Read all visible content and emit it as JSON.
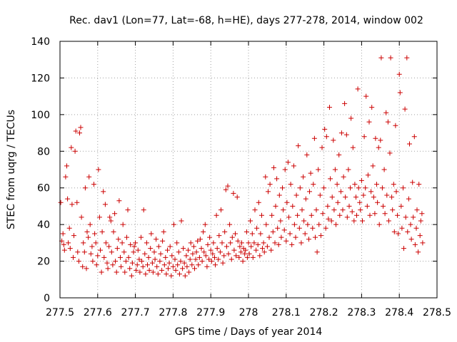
{
  "chart_data": {
    "type": "scatter",
    "title": "Rec. dav1 (Lon=77, Lat=-68, h=HE), days 277-278, 2014, window 002",
    "xlabel": "GPS time / Days of year 2014",
    "ylabel": "STEC from uqrg / TECUs",
    "xlim": [
      277.5,
      278.5
    ],
    "ylim": [
      0,
      140
    ],
    "xticks": [
      "277.5",
      "277.6",
      "277.7",
      "277.8",
      "277.9",
      "278",
      "278.1",
      "278.2",
      "278.3",
      "278.4",
      "278.5"
    ],
    "yticks": [
      "0",
      "20",
      "40",
      "60",
      "80",
      "100",
      "120",
      "140"
    ],
    "grid": true,
    "marker": "plus",
    "color": "#cc0000",
    "points": [
      [
        277.502,
        52
      ],
      [
        277.505,
        31
      ],
      [
        277.508,
        35
      ],
      [
        277.51,
        29
      ],
      [
        277.512,
        26
      ],
      [
        277.515,
        66
      ],
      [
        277.518,
        72
      ],
      [
        277.52,
        54
      ],
      [
        277.522,
        30
      ],
      [
        277.525,
        38
      ],
      [
        277.527,
        27
      ],
      [
        277.53,
        82
      ],
      [
        277.532,
        51
      ],
      [
        277.535,
        22
      ],
      [
        277.537,
        34
      ],
      [
        277.54,
        80
      ],
      [
        277.542,
        91
      ],
      [
        277.545,
        52
      ],
      [
        277.547,
        25
      ],
      [
        277.55,
        20
      ],
      [
        277.552,
        90
      ],
      [
        277.555,
        93
      ],
      [
        277.557,
        44
      ],
      [
        277.56,
        17
      ],
      [
        277.562,
        30
      ],
      [
        277.565,
        25
      ],
      [
        277.567,
        60
      ],
      [
        277.57,
        16
      ],
      [
        277.572,
        36
      ],
      [
        277.575,
        33
      ],
      [
        277.577,
        66
      ],
      [
        277.58,
        40
      ],
      [
        277.582,
        24
      ],
      [
        277.585,
        28
      ],
      [
        277.587,
        20
      ],
      [
        277.59,
        62
      ],
      [
        277.592,
        35
      ],
      [
        277.595,
        30
      ],
      [
        277.597,
        18
      ],
      [
        277.6,
        23
      ],
      [
        277.602,
        70
      ],
      [
        277.605,
        44
      ],
      [
        277.607,
        26
      ],
      [
        277.61,
        14
      ],
      [
        277.612,
        36
      ],
      [
        277.615,
        58
      ],
      [
        277.617,
        22
      ],
      [
        277.62,
        51
      ],
      [
        277.622,
        30
      ],
      [
        277.625,
        19
      ],
      [
        277.627,
        16
      ],
      [
        277.63,
        28
      ],
      [
        277.632,
        44
      ],
      [
        277.635,
        42
      ],
      [
        277.637,
        25
      ],
      [
        277.64,
        18
      ],
      [
        277.642,
        36
      ],
      [
        277.645,
        46
      ],
      [
        277.647,
        20
      ],
      [
        277.65,
        14
      ],
      [
        277.652,
        27
      ],
      [
        277.655,
        32
      ],
      [
        277.657,
        53
      ],
      [
        277.66,
        22
      ],
      [
        277.662,
        17
      ],
      [
        277.665,
        30
      ],
      [
        277.667,
        40
      ],
      [
        277.67,
        25
      ],
      [
        277.672,
        14
      ],
      [
        277.675,
        20
      ],
      [
        277.677,
        33
      ],
      [
        277.68,
        48
      ],
      [
        277.682,
        22
      ],
      [
        277.685,
        16
      ],
      [
        277.687,
        29
      ],
      [
        277.69,
        12
      ],
      [
        277.692,
        19
      ],
      [
        277.695,
        25
      ],
      [
        277.697,
        28
      ],
      [
        277.7,
        30
      ],
      [
        277.702,
        15
      ],
      [
        277.705,
        18
      ],
      [
        277.707,
        26
      ],
      [
        277.71,
        21
      ],
      [
        277.712,
        14
      ],
      [
        277.715,
        33
      ],
      [
        277.717,
        20
      ],
      [
        277.72,
        17
      ],
      [
        277.722,
        48
      ],
      [
        277.725,
        24
      ],
      [
        277.727,
        13
      ],
      [
        277.73,
        30
      ],
      [
        277.732,
        18
      ],
      [
        277.735,
        22
      ],
      [
        277.737,
        15
      ],
      [
        277.74,
        27
      ],
      [
        277.742,
        35
      ],
      [
        277.745,
        19
      ],
      [
        277.747,
        14
      ],
      [
        277.75,
        25
      ],
      [
        277.752,
        21
      ],
      [
        277.755,
        32
      ],
      [
        277.757,
        17
      ],
      [
        277.76,
        13
      ],
      [
        277.762,
        28
      ],
      [
        277.765,
        20
      ],
      [
        277.767,
        24
      ],
      [
        277.77,
        15
      ],
      [
        277.772,
        31
      ],
      [
        277.775,
        36
      ],
      [
        277.777,
        18
      ],
      [
        277.78,
        22
      ],
      [
        277.782,
        13
      ],
      [
        277.785,
        26
      ],
      [
        277.787,
        16
      ],
      [
        277.79,
        19
      ],
      [
        277.792,
        28
      ],
      [
        277.795,
        12
      ],
      [
        277.797,
        23
      ],
      [
        277.8,
        17
      ],
      [
        277.802,
        40
      ],
      [
        277.805,
        21
      ],
      [
        277.807,
        15
      ],
      [
        277.81,
        30
      ],
      [
        277.812,
        18
      ],
      [
        277.815,
        25
      ],
      [
        277.817,
        13
      ],
      [
        277.82,
        20
      ],
      [
        277.822,
        42
      ],
      [
        277.825,
        16
      ],
      [
        277.827,
        27
      ],
      [
        277.83,
        19
      ],
      [
        277.832,
        12
      ],
      [
        277.835,
        23
      ],
      [
        277.837,
        17
      ],
      [
        277.84,
        26
      ],
      [
        277.842,
        14
      ],
      [
        277.845,
        21
      ],
      [
        277.847,
        30
      ],
      [
        277.85,
        18
      ],
      [
        277.852,
        24
      ],
      [
        277.855,
        28
      ],
      [
        277.857,
        16
      ],
      [
        277.86,
        21
      ],
      [
        277.862,
        25
      ],
      [
        277.865,
        31
      ],
      [
        277.867,
        18
      ],
      [
        277.87,
        22
      ],
      [
        277.872,
        32
      ],
      [
        277.875,
        27
      ],
      [
        277.877,
        20
      ],
      [
        277.88,
        36
      ],
      [
        277.882,
        25
      ],
      [
        277.885,
        40
      ],
      [
        277.887,
        23
      ],
      [
        277.89,
        17
      ],
      [
        277.892,
        29
      ],
      [
        277.895,
        21
      ],
      [
        277.897,
        33
      ],
      [
        277.9,
        26
      ],
      [
        277.902,
        20
      ],
      [
        277.905,
        24
      ],
      [
        277.907,
        30
      ],
      [
        277.91,
        22
      ],
      [
        277.912,
        18
      ],
      [
        277.915,
        45
      ],
      [
        277.917,
        27
      ],
      [
        277.92,
        21
      ],
      [
        277.922,
        34
      ],
      [
        277.925,
        25
      ],
      [
        277.927,
        48
      ],
      [
        277.93,
        30
      ],
      [
        277.932,
        19
      ],
      [
        277.935,
        23
      ],
      [
        277.937,
        36
      ],
      [
        277.94,
        59
      ],
      [
        277.942,
        28
      ],
      [
        277.945,
        61
      ],
      [
        277.947,
        24
      ],
      [
        277.95,
        40
      ],
      [
        277.952,
        30
      ],
      [
        277.955,
        21
      ],
      [
        277.957,
        33
      ],
      [
        277.96,
        57
      ],
      [
        277.962,
        26
      ],
      [
        277.965,
        35
      ],
      [
        277.967,
        23
      ],
      [
        277.97,
        55
      ],
      [
        277.972,
        31
      ],
      [
        277.975,
        22
      ],
      [
        277.977,
        28
      ],
      [
        277.98,
        25
      ],
      [
        277.982,
        30
      ],
      [
        277.985,
        20
      ],
      [
        277.987,
        27
      ],
      [
        277.99,
        24
      ],
      [
        277.992,
        26
      ],
      [
        277.995,
        36
      ],
      [
        277.997,
        22
      ],
      [
        278.0,
        30
      ],
      [
        278.002,
        24
      ],
      [
        278.005,
        42
      ],
      [
        278.007,
        28
      ],
      [
        278.01,
        35
      ],
      [
        278.012,
        22
      ],
      [
        278.015,
        30
      ],
      [
        278.017,
        48
      ],
      [
        278.02,
        26
      ],
      [
        278.022,
        38
      ],
      [
        278.025,
        29
      ],
      [
        278.027,
        52
      ],
      [
        278.03,
        23
      ],
      [
        278.032,
        35
      ],
      [
        278.035,
        45
      ],
      [
        278.037,
        27
      ],
      [
        278.04,
        30
      ],
      [
        278.042,
        25
      ],
      [
        278.045,
        66
      ],
      [
        278.047,
        40
      ],
      [
        278.05,
        28
      ],
      [
        278.052,
        58
      ],
      [
        278.055,
        33
      ],
      [
        278.057,
        62
      ],
      [
        278.06,
        26
      ],
      [
        278.062,
        45
      ],
      [
        278.065,
        36
      ],
      [
        278.067,
        71
      ],
      [
        278.07,
        30
      ],
      [
        278.072,
        50
      ],
      [
        278.075,
        65
      ],
      [
        278.077,
        38
      ],
      [
        278.08,
        29
      ],
      [
        278.082,
        56
      ],
      [
        278.085,
        42
      ],
      [
        278.087,
        33
      ],
      [
        278.09,
        60
      ],
      [
        278.092,
        48
      ],
      [
        278.095,
        37
      ],
      [
        278.097,
        70
      ],
      [
        278.1,
        31
      ],
      [
        278.102,
        52
      ],
      [
        278.105,
        74
      ],
      [
        278.107,
        44
      ],
      [
        278.11,
        35
      ],
      [
        278.112,
        62
      ],
      [
        278.115,
        29
      ],
      [
        278.117,
        50
      ],
      [
        278.12,
        72
      ],
      [
        278.122,
        40
      ],
      [
        278.125,
        33
      ],
      [
        278.127,
        56
      ],
      [
        278.13,
        45
      ],
      [
        278.132,
        83
      ],
      [
        278.135,
        38
      ],
      [
        278.137,
        60
      ],
      [
        278.14,
        30
      ],
      [
        278.142,
        48
      ],
      [
        278.145,
        66
      ],
      [
        278.147,
        42
      ],
      [
        278.15,
        35
      ],
      [
        278.152,
        54
      ],
      [
        278.155,
        78
      ],
      [
        278.157,
        40
      ],
      [
        278.16,
        32
      ],
      [
        278.162,
        58
      ],
      [
        278.165,
        68
      ],
      [
        278.167,
        45
      ],
      [
        278.17,
        38
      ],
      [
        278.172,
        62
      ],
      [
        278.175,
        87
      ],
      [
        278.177,
        33
      ],
      [
        278.18,
        48
      ],
      [
        278.182,
        25
      ],
      [
        278.185,
        70
      ],
      [
        278.187,
        40
      ],
      [
        278.19,
        56
      ],
      [
        278.192,
        34
      ],
      [
        278.195,
        82
      ],
      [
        278.197,
        46
      ],
      [
        278.2,
        60
      ],
      [
        278.202,
        92
      ],
      [
        278.205,
        38
      ],
      [
        278.207,
        88
      ],
      [
        278.21,
        50
      ],
      [
        278.212,
        43
      ],
      [
        278.215,
        104
      ],
      [
        278.217,
        65
      ],
      [
        278.22,
        42
      ],
      [
        278.222,
        55
      ],
      [
        278.225,
        86
      ],
      [
        278.227,
        48
      ],
      [
        278.23,
        70
      ],
      [
        278.232,
        40
      ],
      [
        278.235,
        62
      ],
      [
        278.237,
        52
      ],
      [
        278.24,
        78
      ],
      [
        278.242,
        45
      ],
      [
        278.245,
        58
      ],
      [
        278.247,
        90
      ],
      [
        278.25,
        48
      ],
      [
        278.252,
        66
      ],
      [
        278.255,
        106
      ],
      [
        278.257,
        55
      ],
      [
        278.26,
        89
      ],
      [
        278.262,
        44
      ],
      [
        278.265,
        70
      ],
      [
        278.267,
        50
      ],
      [
        278.27,
        60
      ],
      [
        278.272,
        98
      ],
      [
        278.275,
        47
      ],
      [
        278.277,
        82
      ],
      [
        278.28,
        42
      ],
      [
        278.282,
        62
      ],
      [
        278.285,
        55
      ],
      [
        278.287,
        45
      ],
      [
        278.29,
        114
      ],
      [
        278.292,
        60
      ],
      [
        278.295,
        52
      ],
      [
        278.297,
        48
      ],
      [
        278.3,
        64
      ],
      [
        278.302,
        42
      ],
      [
        278.305,
        56
      ],
      [
        278.307,
        88
      ],
      [
        278.31,
        60
      ],
      [
        278.312,
        110
      ],
      [
        278.315,
        50
      ],
      [
        278.317,
        67
      ],
      [
        278.32,
        96
      ],
      [
        278.322,
        45
      ],
      [
        278.325,
        58
      ],
      [
        278.327,
        104
      ],
      [
        278.33,
        72
      ],
      [
        278.332,
        55
      ],
      [
        278.335,
        46
      ],
      [
        278.337,
        87
      ],
      [
        278.34,
        62
      ],
      [
        278.342,
        52
      ],
      [
        278.345,
        82
      ],
      [
        278.347,
        40
      ],
      [
        278.35,
        86
      ],
      [
        278.352,
        131
      ],
      [
        278.355,
        60
      ],
      [
        278.357,
        50
      ],
      [
        278.36,
        70
      ],
      [
        278.362,
        46
      ],
      [
        278.365,
        101
      ],
      [
        278.367,
        56
      ],
      [
        278.37,
        96
      ],
      [
        278.372,
        42
      ],
      [
        278.375,
        79
      ],
      [
        278.377,
        131
      ],
      [
        278.38,
        55
      ],
      [
        278.382,
        48
      ],
      [
        278.385,
        62
      ],
      [
        278.387,
        36
      ],
      [
        278.39,
        94
      ],
      [
        278.392,
        58
      ],
      [
        278.395,
        45
      ],
      [
        278.397,
        35
      ],
      [
        278.4,
        122
      ],
      [
        278.402,
        112
      ],
      [
        278.405,
        50
      ],
      [
        278.407,
        38
      ],
      [
        278.41,
        60
      ],
      [
        278.412,
        27
      ],
      [
        278.415,
        103
      ],
      [
        278.417,
        44
      ],
      [
        278.42,
        131
      ],
      [
        278.422,
        36
      ],
      [
        278.425,
        54
      ],
      [
        278.427,
        84
      ],
      [
        278.43,
        40
      ],
      [
        278.432,
        32
      ],
      [
        278.435,
        63
      ],
      [
        278.437,
        44
      ],
      [
        278.44,
        88
      ],
      [
        278.442,
        29
      ],
      [
        278.445,
        38
      ],
      [
        278.447,
        48
      ],
      [
        278.45,
        25
      ],
      [
        278.452,
        62
      ],
      [
        278.455,
        34
      ],
      [
        278.457,
        42
      ],
      [
        278.46,
        46
      ],
      [
        278.462,
        30
      ]
    ]
  }
}
